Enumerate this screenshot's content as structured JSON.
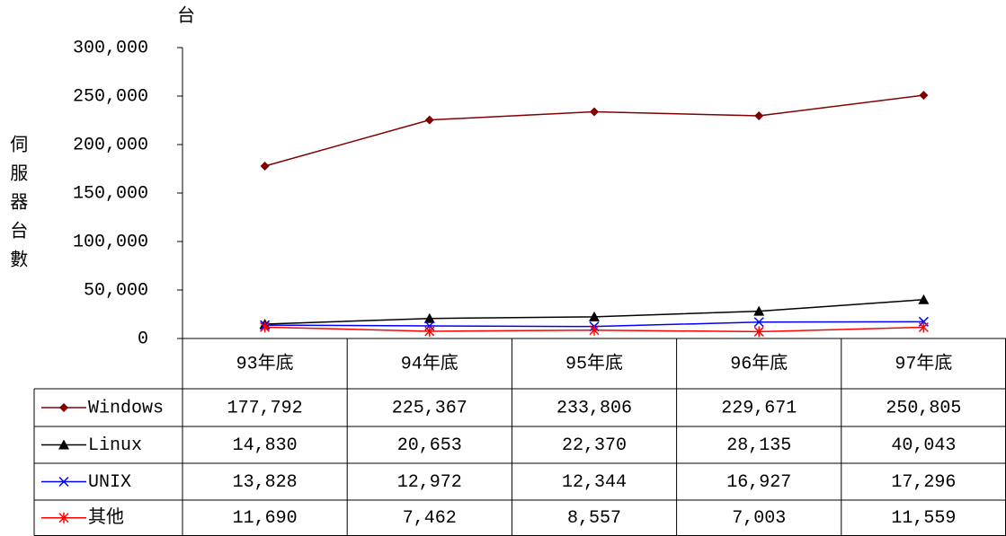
{
  "chart_data": {
    "type": "line",
    "y_unit": "台",
    "y_label": "伺服器台數",
    "categories": [
      "93年底",
      "94年底",
      "95年底",
      "96年底",
      "97年底"
    ],
    "series": [
      {
        "name": "Windows",
        "color": "#800000",
        "marker": "diamond",
        "values": [
          177792,
          225367,
          233806,
          229671,
          250805
        ],
        "value_labels": [
          "177,792",
          "225,367",
          "233,806",
          "229,671",
          "250,805"
        ]
      },
      {
        "name": "Linux",
        "color": "#000000",
        "marker": "triangle",
        "values": [
          14830,
          20653,
          22370,
          28135,
          40043
        ],
        "value_labels": [
          "14,830",
          "20,653",
          "22,370",
          "28,135",
          "40,043"
        ]
      },
      {
        "name": "UNIX",
        "color": "#0000ff",
        "marker": "x",
        "values": [
          13828,
          12972,
          12344,
          16927,
          17296
        ],
        "value_labels": [
          "13,828",
          "12,972",
          "12,344",
          "16,927",
          "17,296"
        ]
      },
      {
        "name": "其他",
        "color": "#ff0000",
        "marker": "asterisk",
        "values": [
          11690,
          7462,
          8557,
          7003,
          11559
        ],
        "value_labels": [
          "11,690",
          "7,462",
          "8,557",
          "7,003",
          "11,559"
        ]
      }
    ],
    "ylim": [
      0,
      300000
    ],
    "yticks": [
      0,
      {
        "value": 50000,
        "label": "50,000"
      },
      {
        "value": 100000,
        "label": "100,000"
      },
      {
        "value": 150000,
        "label": "150,000"
      },
      {
        "value": 200000,
        "label": "200,000"
      },
      {
        "value": 250000,
        "label": "250,000"
      },
      {
        "value": 300000,
        "label": "300,000"
      }
    ]
  }
}
